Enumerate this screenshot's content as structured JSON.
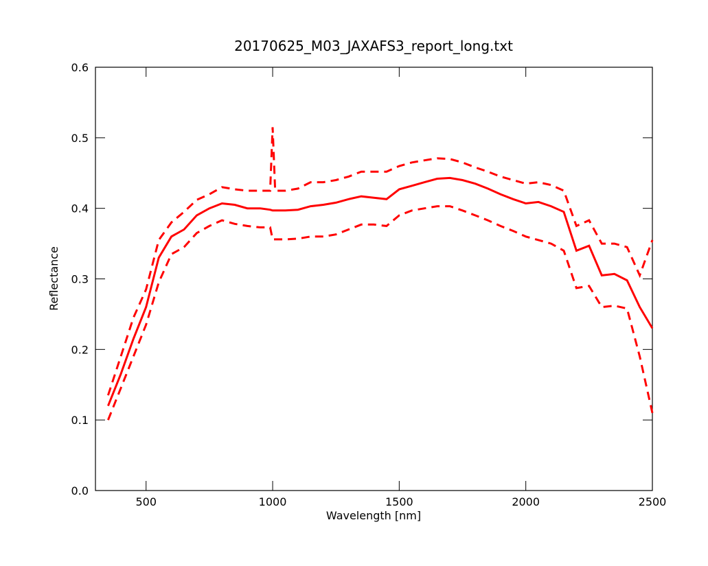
{
  "chart_data": {
    "type": "line",
    "title": "20170625_M03_JAXAFS3_report_long.txt",
    "x_label": "Wavelength [nm]",
    "y_label": "Reflectance",
    "x": [
      350,
      400,
      450,
      500,
      550,
      600,
      650,
      700,
      750,
      800,
      850,
      900,
      950,
      990,
      1000,
      1010,
      1050,
      1100,
      1150,
      1200,
      1250,
      1300,
      1350,
      1400,
      1450,
      1500,
      1550,
      1600,
      1650,
      1700,
      1750,
      1800,
      1850,
      1900,
      1950,
      2000,
      2050,
      2100,
      2150,
      2200,
      2250,
      2300,
      2350,
      2400,
      2450,
      2500
    ],
    "series": [
      {
        "color": "#ff0000",
        "line_style": "solid",
        "values": [
          0.12,
          0.165,
          0.215,
          0.26,
          0.33,
          0.36,
          0.37,
          0.39,
          0.4,
          0.407,
          0.405,
          0.4,
          0.4,
          0.398,
          0.397,
          0.397,
          0.397,
          0.398,
          0.403,
          0.405,
          0.408,
          0.413,
          0.417,
          0.415,
          0.413,
          0.427,
          0.432,
          0.437,
          0.442,
          0.443,
          0.44,
          0.435,
          0.428,
          0.42,
          0.413,
          0.407,
          0.409,
          0.403,
          0.395,
          0.34,
          0.347,
          0.305,
          0.307,
          0.298,
          0.26,
          0.23
        ]
      },
      {
        "color": "#ff0000",
        "line_style": "dashed",
        "values": [
          0.135,
          0.19,
          0.245,
          0.285,
          0.355,
          0.38,
          0.395,
          0.412,
          0.42,
          0.43,
          0.427,
          0.425,
          0.425,
          0.425,
          0.515,
          0.425,
          0.425,
          0.428,
          0.437,
          0.437,
          0.44,
          0.445,
          0.452,
          0.452,
          0.452,
          0.46,
          0.465,
          0.468,
          0.471,
          0.47,
          0.465,
          0.458,
          0.452,
          0.445,
          0.44,
          0.435,
          0.437,
          0.433,
          0.425,
          0.375,
          0.383,
          0.35,
          0.35,
          0.345,
          0.305,
          0.355
        ]
      },
      {
        "color": "#ff0000",
        "line_style": "dashed",
        "values": [
          0.1,
          0.145,
          0.19,
          0.235,
          0.295,
          0.335,
          0.345,
          0.365,
          0.375,
          0.383,
          0.378,
          0.375,
          0.373,
          0.373,
          0.356,
          0.356,
          0.356,
          0.357,
          0.36,
          0.36,
          0.363,
          0.37,
          0.377,
          0.377,
          0.375,
          0.39,
          0.397,
          0.4,
          0.403,
          0.403,
          0.397,
          0.39,
          0.383,
          0.375,
          0.368,
          0.36,
          0.355,
          0.35,
          0.34,
          0.287,
          0.29,
          0.26,
          0.262,
          0.258,
          0.19,
          0.11
        ]
      }
    ],
    "xlim": [
      300,
      2500
    ],
    "ylim": [
      0,
      0.6
    ],
    "xticks": [
      500,
      1000,
      1500,
      2000,
      2500
    ],
    "yticks": [
      {
        "value": 0,
        "label": "0.0"
      },
      0.1,
      0.2,
      0.3,
      0.4,
      0.5,
      0.6
    ]
  }
}
